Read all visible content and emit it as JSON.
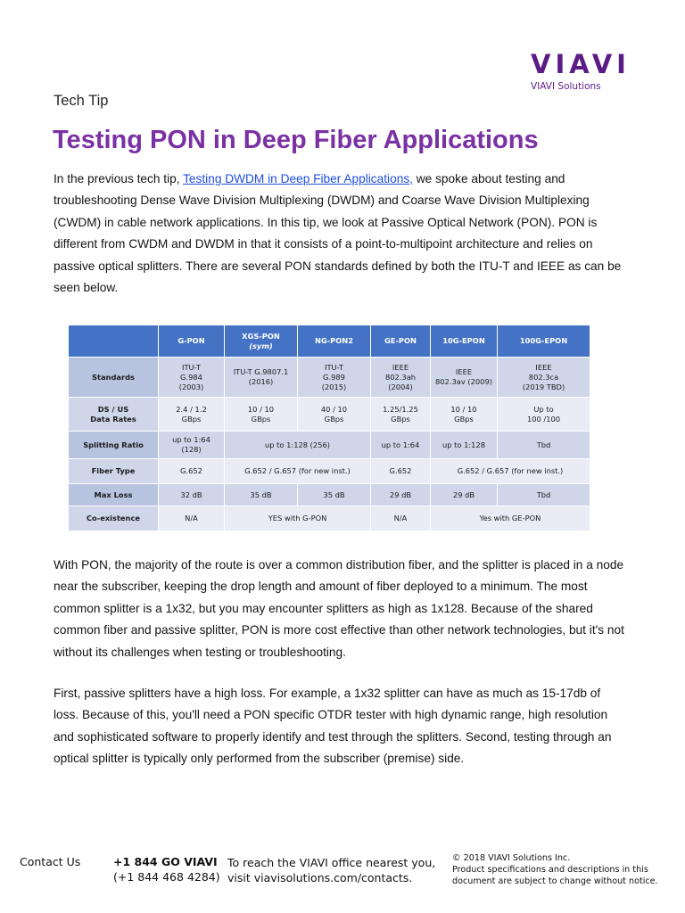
{
  "brand": {
    "logo_text": "VIAVI",
    "logo_subtitle": "VIAVI Solutions"
  },
  "header": {
    "kicker": "Tech Tip",
    "title": "Testing PON in Deep Fiber Applications"
  },
  "intro": {
    "lead": "In the previous tech tip, ",
    "link_text": "Testing DWDM in Deep Fiber Applications,",
    "rest": " we spoke about testing and troubleshooting Dense Wave Division Multiplexing (DWDM) and Coarse Wave Division Multiplexing (CWDM) in cable network applications. In this tip, we look at Passive Optical Network (PON). PON is different from CWDM and DWDM in that it consists of a point-to-multipoint architecture and relies on passive optical splitters. There are several PON standards defined by both the ITU-T and IEEE as can be seen below."
  },
  "table": {
    "headers": [
      "",
      "G-PON",
      "XGS-PON",
      "(sym)",
      "NG-PON2",
      "GE-PON",
      "10G-EPON",
      "100G-EPON"
    ],
    "rows": {
      "standards": {
        "label": "Standards",
        "gpon": [
          "ITU-T",
          "G.984",
          "(2003)"
        ],
        "xgspon": [
          "ITU-T G.9807.1",
          "(2016)"
        ],
        "ngpon2": [
          "ITU-T",
          "G.989",
          "(2015)"
        ],
        "gepon": [
          "IEEE",
          "802.3ah",
          "(2004)"
        ],
        "epon10": [
          "IEEE",
          "802.3av (2009)"
        ],
        "epon100": [
          "IEEE",
          "802.3ca",
          "(2019 TBD)"
        ]
      },
      "rates": {
        "label": [
          "DS / US",
          "Data Rates"
        ],
        "gpon": [
          "2.4 / 1.2",
          "GBps"
        ],
        "xgspon": [
          "10 / 10",
          "GBps"
        ],
        "ngpon2": [
          "40 / 10",
          "GBps"
        ],
        "gepon": [
          "1.25/1.25",
          "GBps"
        ],
        "epon10": [
          "10 / 10",
          "GBps"
        ],
        "epon100": [
          "Up to",
          "100 /100"
        ]
      },
      "splitting": {
        "label": "Splitting Ratio",
        "gpon": [
          "up to 1:64",
          "(128)"
        ],
        "xgs_ng": "up to 1:128 (256)",
        "gepon": "up to 1:64",
        "epon10": "up to 1:128",
        "epon100": "Tbd"
      },
      "fiber": {
        "label": "Fiber Type",
        "gpon": "G.652",
        "xgs_ng": "G.652 / G.657 (for new inst.)",
        "gepon": "G.652",
        "epon": "G.652 / G.657 (for new inst.)"
      },
      "loss": {
        "label": "Max  Loss",
        "gpon": "32 dB",
        "xgspon": "35 dB",
        "ngpon2": "35 dB",
        "gepon": "29 dB",
        "epon10": "29 dB",
        "epon100": "Tbd"
      },
      "coexist": {
        "label": "Co-existence",
        "gpon": "N/A",
        "xgs_ng": "YES with G-PON",
        "gepon": "N/A",
        "epon": "Yes with GE-PON"
      }
    }
  },
  "body": {
    "p2": "With PON, the majority of the route is over a common distribution fiber, and the splitter is placed in a node near the subscriber, keeping the drop length and amount of fiber deployed to a minimum. The most common splitter is a 1x32, but you may encounter splitters as high as 1x128. Because of the shared common fiber and passive splitter, PON is more cost effective than other network technologies, but it's not without its challenges when testing or troubleshooting.",
    "p3": "First, passive splitters have a high loss. For example, a 1x32 splitter can have as much as 15-17db of loss. Because of this, you'll need a PON specific OTDR tester with high dynamic range, high resolution and sophisticated software to properly identify and test through the splitters. Second, testing through an optical splitter is typically only performed from the subscriber (premise) side."
  },
  "footer": {
    "contact_label": "Contact Us",
    "phone_primary": "+1 844 GO VIAVI",
    "phone_secondary": "(+1 844 468 4284)",
    "reach_line1": "To reach the VIAVI office nearest you,",
    "reach_line2": "visit viavisolutions.com/contacts.",
    "legal_line1": "© 2018 VIAVI Solutions Inc.",
    "legal_line2": "Product specifications and descriptions in this",
    "legal_line3": "document are subject to change without notice."
  }
}
